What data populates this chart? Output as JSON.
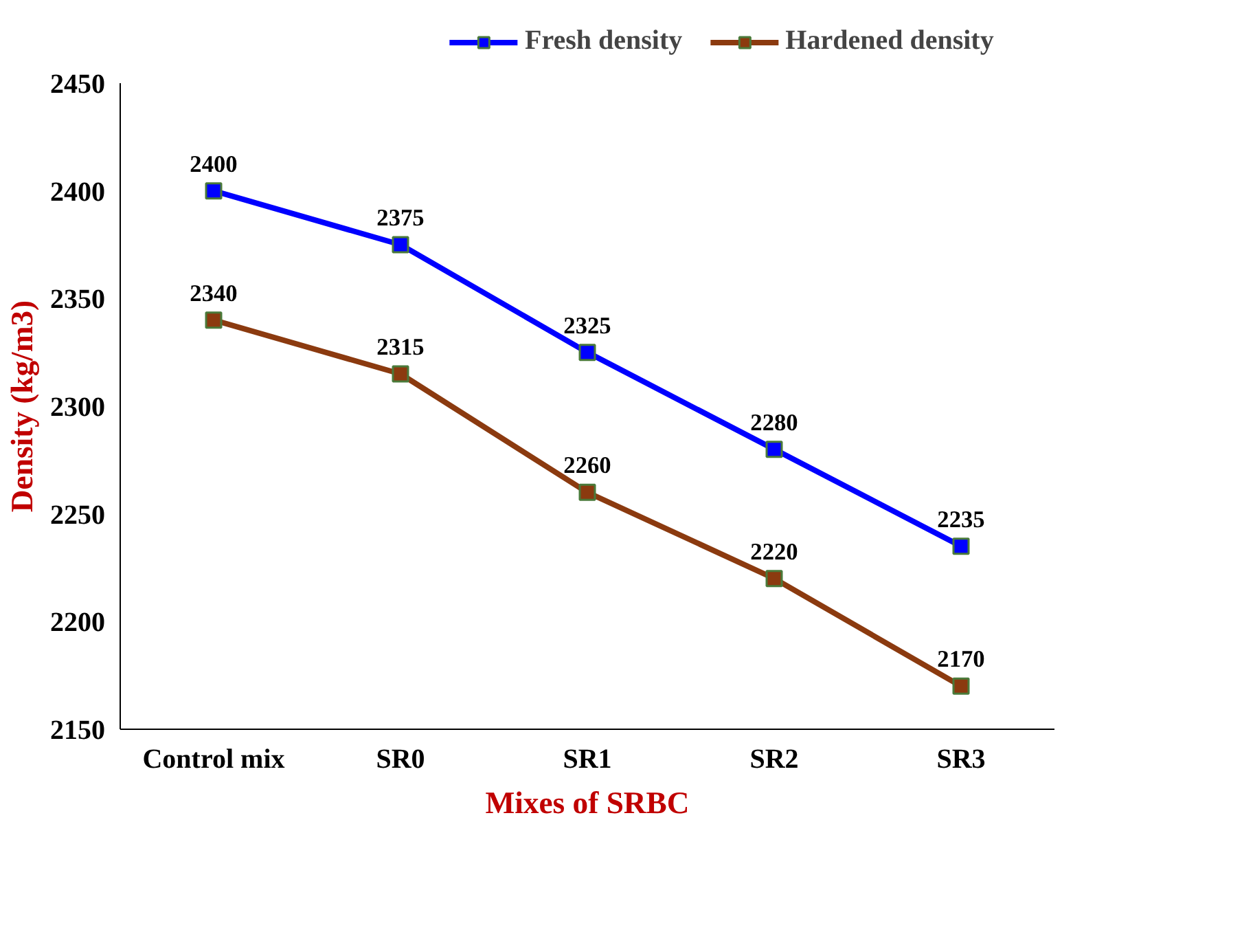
{
  "chart_data": {
    "type": "line",
    "xlabel": "Mixes of SRBC",
    "ylabel": "Density (kg/m3)",
    "categories": [
      "Control mix",
      "SR0",
      "SR1",
      "SR2",
      "SR3"
    ],
    "series": [
      {
        "name": "Fresh density",
        "color": "#0000ff",
        "values": [
          2400,
          2375,
          2325,
          2280,
          2235
        ]
      },
      {
        "name": "Hardened density",
        "color": "#8b3a0f",
        "values": [
          2340,
          2315,
          2260,
          2220,
          2170
        ]
      }
    ],
    "ylim": [
      2150,
      2450
    ],
    "yticks": [
      2150,
      2200,
      2250,
      2300,
      2350,
      2400,
      2450
    ],
    "grid": false,
    "legend": "top right",
    "marker": "square",
    "line_style": "solid",
    "data_labels": true
  }
}
